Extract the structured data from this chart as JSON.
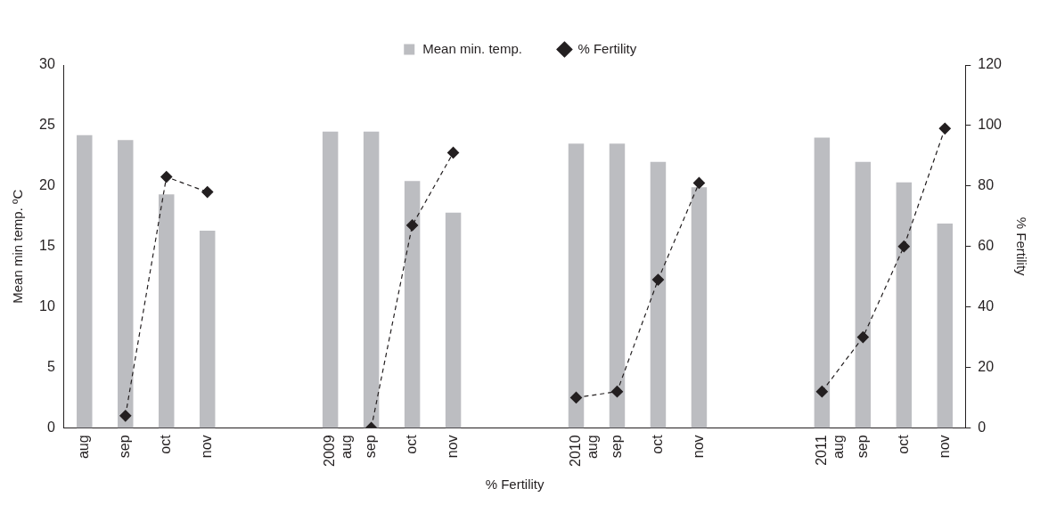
{
  "chart_data": {
    "type": "bar",
    "xlabel": "% Fertility",
    "ylabel": "Mean min temp. ºC",
    "y2label": "% Fertility",
    "categories": [
      "aug",
      "sep",
      "oct",
      "nov",
      null,
      null,
      "2009\naug",
      "sep",
      "oct",
      "nov",
      null,
      null,
      "2010\naug",
      "sep",
      "oct",
      "nov",
      null,
      null,
      "2011\naug",
      "sep",
      "oct",
      "nov"
    ],
    "series": [
      {
        "name": "Mean min. temp.",
        "color": "#bcbdc1",
        "values": [
          24.2,
          23.8,
          19.3,
          16.3,
          null,
          null,
          24.5,
          24.5,
          20.4,
          17.8,
          null,
          null,
          23.5,
          23.5,
          22.0,
          19.9,
          null,
          null,
          24.0,
          22.0,
          20.3,
          16.9
        ]
      },
      {
        "name": "% Fertility",
        "type": "line",
        "axis": "y2",
        "color": "#231f20",
        "marker": "diamond",
        "line_style": "dashed",
        "values": [
          null,
          4,
          83,
          78,
          null,
          null,
          null,
          0,
          67,
          91,
          null,
          null,
          10,
          12,
          49,
          81,
          null,
          null,
          12,
          30,
          60,
          99
        ]
      }
    ],
    "ylim": [
      0,
      30
    ],
    "yticks": [
      0,
      5,
      10,
      15,
      20,
      25,
      30
    ],
    "y2lim": [
      0,
      120
    ],
    "y2ticks": [
      0,
      20,
      40,
      60,
      80,
      100,
      120
    ],
    "grid": false,
    "legend": "top"
  }
}
